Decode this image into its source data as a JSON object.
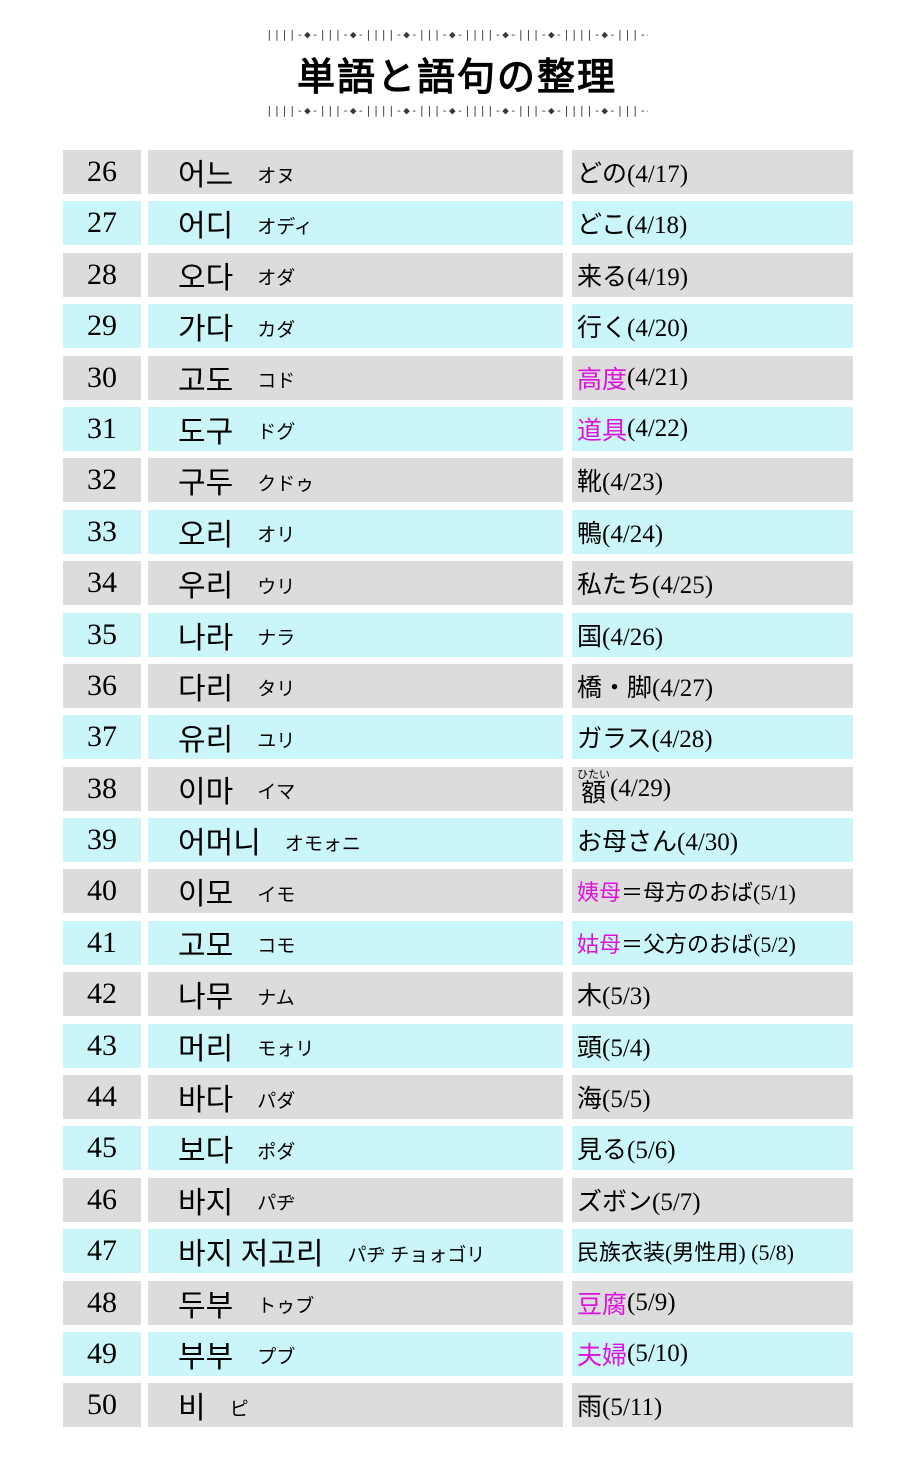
{
  "title": "単語と語句の整理",
  "decorative_pattern": "||||-◆-|||-◆-",
  "colors": {
    "row_gray": "#DCDCDC",
    "row_cyan": "#CBF6F9",
    "magenta": "#DD11DD"
  },
  "table": {
    "rows": [
      {
        "num": "26",
        "word": "어느",
        "kana": "オヌ",
        "meaning": [
          {
            "text": "どの(4/17)"
          }
        ]
      },
      {
        "num": "27",
        "word": "어디",
        "kana": "オディ",
        "meaning": [
          {
            "text": "どこ(4/18)"
          }
        ]
      },
      {
        "num": "28",
        "word": "오다",
        "kana": "オダ",
        "meaning": [
          {
            "text": "来る(4/19)"
          }
        ]
      },
      {
        "num": "29",
        "word": "가다",
        "kana": "カダ",
        "meaning": [
          {
            "text": "行く(4/20)"
          }
        ]
      },
      {
        "num": "30",
        "word": "고도",
        "kana": "コド",
        "meaning": [
          {
            "text": "高度",
            "magenta": true
          },
          {
            "text": "(4/21)"
          }
        ]
      },
      {
        "num": "31",
        "word": "도구",
        "kana": "ドグ",
        "meaning": [
          {
            "text": "道具",
            "magenta": true
          },
          {
            "text": "(4/22)"
          }
        ]
      },
      {
        "num": "32",
        "word": "구두",
        "kana": "クドゥ",
        "meaning": [
          {
            "text": "靴(4/23)"
          }
        ]
      },
      {
        "num": "33",
        "word": "오리",
        "kana": "オリ",
        "meaning": [
          {
            "text": "鴨(4/24)"
          }
        ]
      },
      {
        "num": "34",
        "word": "우리",
        "kana": "ウリ",
        "meaning": [
          {
            "text": "私たち(4/25)"
          }
        ]
      },
      {
        "num": "35",
        "word": "나라",
        "kana": "ナラ",
        "meaning": [
          {
            "text": "国(4/26)"
          }
        ]
      },
      {
        "num": "36",
        "word": "다리",
        "kana": "タリ",
        "meaning": [
          {
            "text": "橋・脚(4/27)"
          }
        ]
      },
      {
        "num": "37",
        "word": "유리",
        "kana": "ユリ",
        "meaning": [
          {
            "text": "ガラス(4/28)"
          }
        ]
      },
      {
        "num": "38",
        "word": "이마",
        "kana": "イマ",
        "meaning": [
          {
            "text": "額",
            "ruby": "ひたい"
          },
          {
            "text": "(4/29)"
          }
        ]
      },
      {
        "num": "39",
        "word": "어머니",
        "kana": "オモォニ",
        "meaning": [
          {
            "text": "お母さん(4/30)"
          }
        ]
      },
      {
        "num": "40",
        "word": "이모",
        "kana": "イモ",
        "meaning": [
          {
            "text": "姨母",
            "magenta": true
          },
          {
            "text": "＝母方のおば(5/1)"
          }
        ]
      },
      {
        "num": "41",
        "word": "고모",
        "kana": "コモ",
        "meaning": [
          {
            "text": "姑母",
            "magenta": true
          },
          {
            "text": "＝父方のおば(5/2)"
          }
        ]
      },
      {
        "num": "42",
        "word": "나무",
        "kana": "ナム",
        "meaning": [
          {
            "text": "木(5/3)"
          }
        ]
      },
      {
        "num": "43",
        "word": "머리",
        "kana": "モォリ",
        "meaning": [
          {
            "text": "頭(5/4)"
          }
        ]
      },
      {
        "num": "44",
        "word": "바다",
        "kana": "パダ",
        "meaning": [
          {
            "text": "海(5/5)"
          }
        ]
      },
      {
        "num": "45",
        "word": "보다",
        "kana": "ポダ",
        "meaning": [
          {
            "text": "見る(5/6)"
          }
        ]
      },
      {
        "num": "46",
        "word": "바지",
        "kana": "パヂ",
        "meaning": [
          {
            "text": "ズボン(5/7)"
          }
        ]
      },
      {
        "num": "47",
        "word": "바지 저고리",
        "kana": "パヂ チョォゴリ",
        "meaning": [
          {
            "text": "民族衣装(男性用) (5/8)"
          }
        ]
      },
      {
        "num": "48",
        "word": "두부",
        "kana": "トゥブ",
        "meaning": [
          {
            "text": "豆腐",
            "magenta": true
          },
          {
            "text": "(5/9)"
          }
        ]
      },
      {
        "num": "49",
        "word": "부부",
        "kana": "プブ",
        "meaning": [
          {
            "text": "夫婦",
            "magenta": true
          },
          {
            "text": "(5/10)"
          }
        ]
      },
      {
        "num": "50",
        "word": "비",
        "kana": "ピ",
        "meaning": [
          {
            "text": "雨(5/11)"
          }
        ]
      }
    ]
  }
}
